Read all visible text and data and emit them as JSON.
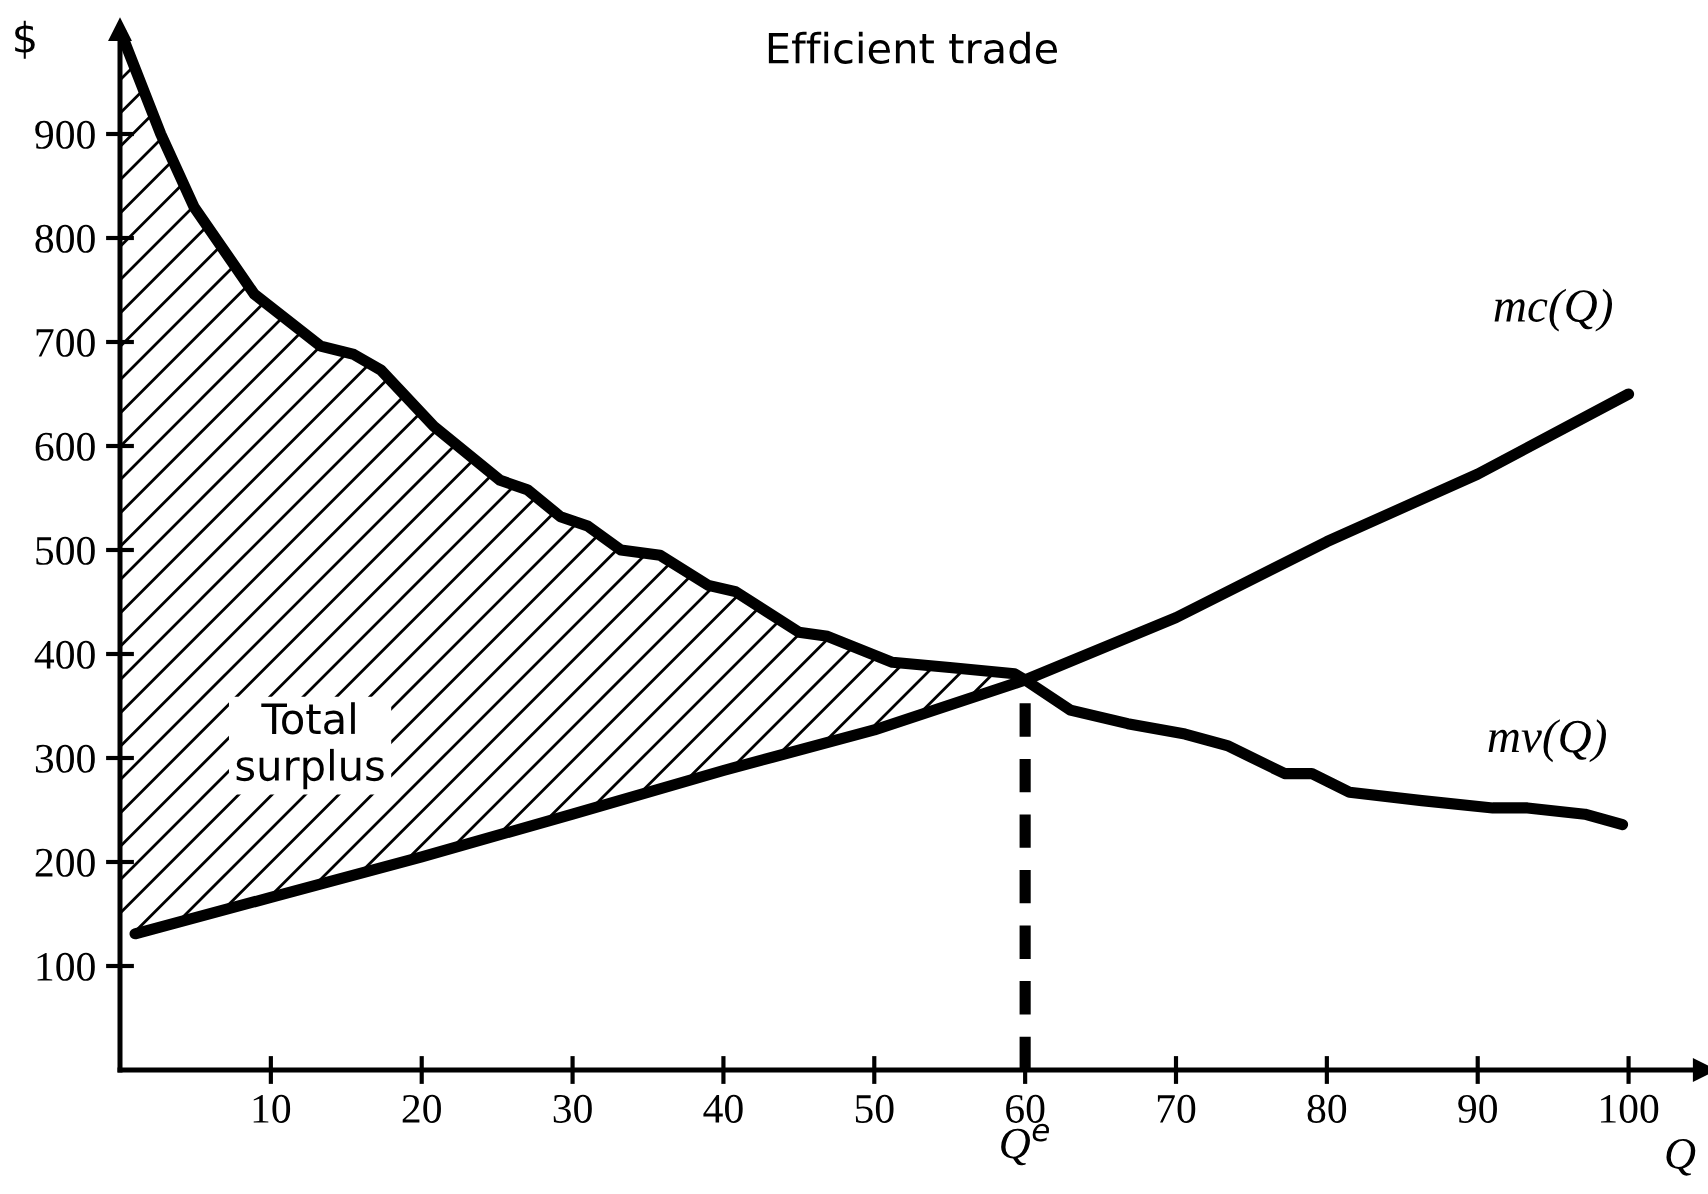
{
  "chart_data": {
    "type": "line",
    "title": "Efficient trade",
    "xlabel": "Q",
    "ylabel": "$",
    "xlim": [
      0,
      105
    ],
    "ylim": [
      0,
      1000
    ],
    "xticks": [
      10,
      20,
      30,
      40,
      50,
      60,
      70,
      80,
      90,
      100
    ],
    "yticks": [
      100,
      200,
      300,
      400,
      500,
      600,
      700,
      800,
      900
    ],
    "grid": false,
    "legend": false,
    "marker": "none",
    "series": [
      {
        "name": "mc(Q)",
        "color": "#000000",
        "x": [
          1,
          10,
          20,
          30,
          40,
          50,
          60,
          70,
          80,
          90,
          100
        ],
        "values": [
          131,
          166,
          205,
          246,
          288,
          327,
          375,
          435,
          508,
          573,
          650
        ]
      },
      {
        "name": "mv(Q)",
        "color": "#000000",
        "x": [
          0,
          2.7,
          4.9,
          8.9,
          13.3,
          15.5,
          17.3,
          20.8,
          25.2,
          27,
          29.2,
          31,
          33.2,
          35.8,
          39,
          40.8,
          45,
          46.9,
          51.2,
          55,
          59.3,
          60,
          63,
          66.8,
          70.6,
          73.4,
          77.2,
          79,
          81.5,
          86.3,
          91,
          93.3,
          97.1,
          99.6
        ],
        "values": [
          1000,
          900,
          830,
          746,
          696,
          688,
          673,
          619,
          567,
          558,
          532,
          523,
          500,
          495,
          466,
          460,
          421,
          417,
          392,
          387,
          381,
          375,
          346,
          333,
          323,
          312,
          285,
          285,
          267,
          259,
          252,
          252,
          246,
          236
        ],
        "lower": [
          131,
          137,
          145,
          162,
          179,
          188,
          194,
          208,
          226,
          234,
          243,
          250,
          259,
          270,
          284,
          291,
          307,
          315,
          332,
          349,
          372,
          375,
          null,
          null,
          null,
          null,
          null,
          null,
          null,
          null,
          null,
          null,
          null,
          null
        ],
        "upper": [
          1000,
          900,
          830,
          746,
          696,
          688,
          673,
          619,
          567,
          558,
          532,
          523,
          500,
          495,
          466,
          460,
          421,
          417,
          392,
          387,
          381,
          375,
          null,
          null,
          null,
          null,
          null,
          null,
          null,
          null,
          null,
          null,
          null,
          null
        ]
      }
    ],
    "ref_lines": [
      {
        "axis": "x",
        "value": 60,
        "label": "Q$^{e}$",
        "line_style": "dashed",
        "color": "#000000"
      }
    ],
    "annotations": [
      "Total\nsurplus"
    ]
  }
}
